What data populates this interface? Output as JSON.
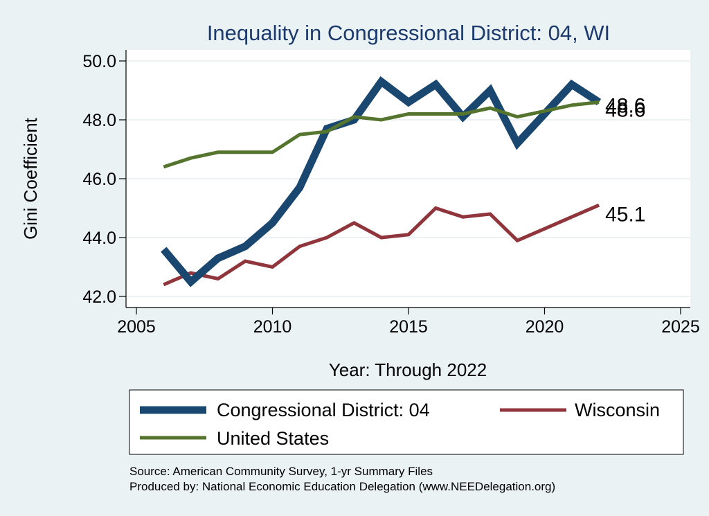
{
  "chart_data": {
    "type": "line",
    "title": "Inequality in Congressional District:  04, WI",
    "xlabel": "Year: Through 2022",
    "ylabel": "Gini Coefficient",
    "xlim": [
      2005,
      2025
    ],
    "ylim": [
      42.0,
      50.0
    ],
    "x_ticks": [
      "2005",
      "2010",
      "2015",
      "2020",
      "2025"
    ],
    "y_ticks": [
      "42.0",
      "44.0",
      "46.0",
      "48.0",
      "50.0"
    ],
    "grid": true,
    "legend_position": "bottom",
    "x": [
      2006,
      2007,
      2008,
      2009,
      2010,
      2011,
      2012,
      2013,
      2014,
      2015,
      2016,
      2017,
      2018,
      2019,
      2020,
      2021,
      2022
    ],
    "series": [
      {
        "name": "Congressional District:  04",
        "color": "#1a476f",
        "values": [
          43.6,
          42.5,
          43.3,
          43.7,
          44.5,
          45.7,
          47.7,
          48.0,
          49.3,
          48.6,
          49.2,
          48.1,
          49.0,
          47.2,
          48.2,
          49.2,
          48.6
        ],
        "end_label": "48.6"
      },
      {
        "name": "Wisconsin",
        "color": "#90353b",
        "values": [
          42.4,
          42.8,
          42.6,
          43.2,
          43.0,
          43.7,
          44.0,
          44.5,
          44.0,
          44.1,
          45.0,
          44.7,
          44.8,
          43.9,
          44.3,
          44.7,
          45.1
        ],
        "end_label": "45.1"
      },
      {
        "name": "United States",
        "color": "#55752f",
        "values": [
          46.4,
          46.7,
          46.9,
          46.9,
          46.9,
          47.5,
          47.6,
          48.1,
          48.0,
          48.2,
          48.2,
          48.2,
          48.4,
          48.1,
          48.3,
          48.5,
          48.6
        ],
        "end_label": "48.6"
      }
    ]
  },
  "notes": {
    "source": "Source: American Community Survey, 1-yr Summary Files",
    "produced": "Produced by: National Economic Education Delegation (www.NEEDelegation.org)"
  }
}
